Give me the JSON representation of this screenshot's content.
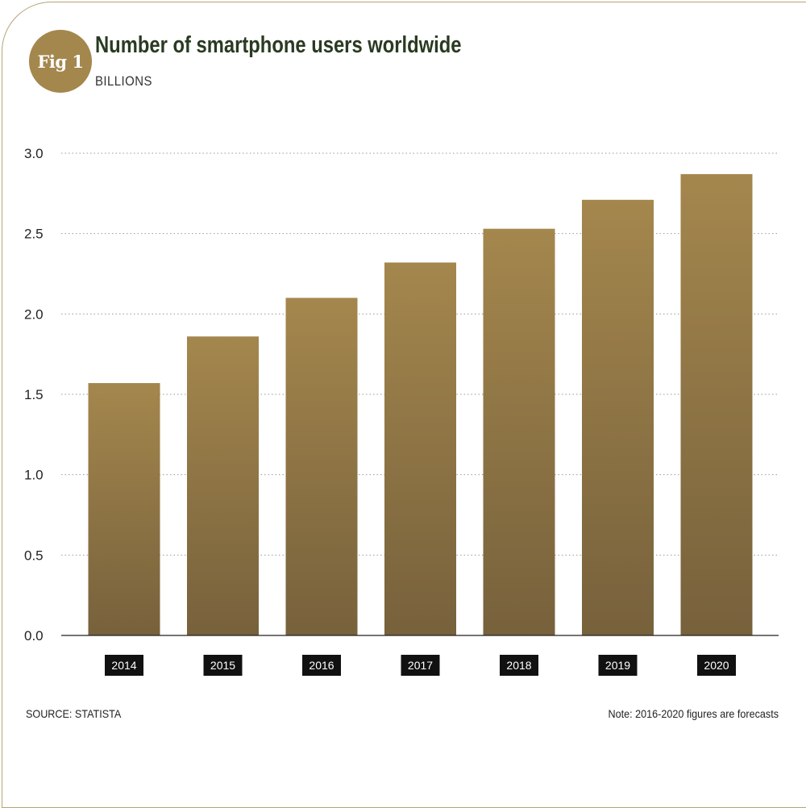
{
  "figure": {
    "badge": "Fig 1",
    "title": "Number of smartphone users worldwide",
    "subtitle": "BILLIONS",
    "source": "SOURCE: STATISTA",
    "note": "Note: 2016-2020 figures are forecasts"
  },
  "colors": {
    "bar_top": "#a4874d",
    "bar_bottom": "#77613c",
    "title": "#2a3a22",
    "badge": "#a4874d",
    "xlabel_bg": "#111111"
  },
  "chart_data": {
    "type": "bar",
    "title": "Number of smartphone users worldwide",
    "ylabel": "BILLIONS",
    "categories": [
      "2014",
      "2015",
      "2016",
      "2017",
      "2018",
      "2019",
      "2020"
    ],
    "values": [
      1.57,
      1.86,
      2.1,
      2.32,
      2.53,
      2.71,
      2.87
    ],
    "ylim": [
      0,
      3.0
    ],
    "yticks": [
      "0.0",
      "0.5",
      "1.0",
      "1.5",
      "2.0",
      "2.5",
      "3.0"
    ],
    "grid": true
  }
}
